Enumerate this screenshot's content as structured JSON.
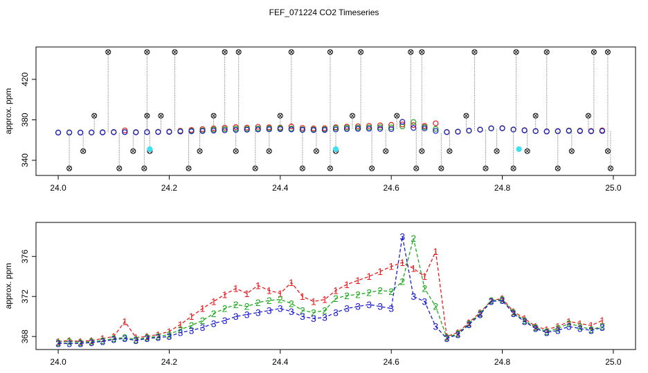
{
  "title": "FEF_071224  CO2 Timeseries",
  "chart_data": [
    {
      "type": "scatter",
      "ylabel": "approx. ppm",
      "xlim": [
        23.96,
        25.04
      ],
      "ylim": [
        325,
        452
      ],
      "xticks": [
        {
          "value": 24,
          "label": "24.0"
        },
        24.2,
        24.4,
        24.6,
        24.8,
        {
          "value": 25,
          "label": "25.0"
        }
      ],
      "yticks": [
        340,
        380,
        420
      ],
      "x": [
        24.0,
        24.02,
        24.04,
        24.06,
        24.08,
        24.1,
        24.12,
        24.14,
        24.16,
        24.18,
        24.2,
        24.22,
        24.24,
        24.26,
        24.28,
        24.3,
        24.32,
        24.34,
        24.36,
        24.38,
        24.4,
        24.42,
        24.44,
        24.46,
        24.48,
        24.5,
        24.52,
        24.54,
        24.56,
        24.58,
        24.6,
        24.62,
        24.64,
        24.66,
        24.68,
        24.7,
        24.72,
        24.74,
        24.76,
        24.78,
        24.8,
        24.82,
        24.84,
        24.86,
        24.88,
        24.9,
        24.92,
        24.94,
        24.96,
        24.98
      ],
      "series": [
        {
          "color": "#e41a1c",
          "values": [
            367.5,
            367.6,
            367.5,
            367.6,
            367.8,
            368.0,
            369.5,
            367.9,
            368.0,
            368.2,
            368.5,
            369.2,
            370.0,
            370.8,
            371.5,
            372.2,
            372.8,
            372.3,
            373.1,
            372.6,
            372.3,
            373.4,
            372.0,
            371.5,
            371.7,
            372.6,
            373.2,
            373.6,
            374.0,
            374.5,
            375.0,
            375.4,
            374.8,
            374.0,
            376.5,
            368.0,
            368.4,
            369.4,
            370.4,
            371.6,
            371.8,
            370.5,
            369.8,
            369.0,
            368.7,
            369.0,
            369.5,
            369.3,
            369.1,
            369.6
          ]
        },
        {
          "color": "#1ca81c",
          "values": [
            367.4,
            367.5,
            367.4,
            367.5,
            367.6,
            367.8,
            367.9,
            367.7,
            367.9,
            368.0,
            368.2,
            368.7,
            369.1,
            369.6,
            370.3,
            370.8,
            371.2,
            371.0,
            371.4,
            371.6,
            371.7,
            371.3,
            370.6,
            370.4,
            370.6,
            371.8,
            372.1,
            372.2,
            372.4,
            372.6,
            372.5,
            373.5,
            377.8,
            372.8,
            371.0,
            367.9,
            368.3,
            369.3,
            370.3,
            371.6,
            371.7,
            370.4,
            369.6,
            368.9,
            368.5,
            368.8,
            369.3,
            369.0,
            368.7,
            369.0
          ]
        },
        {
          "color": "#1a1acc",
          "values": [
            367.3,
            367.3,
            367.3,
            367.4,
            367.5,
            367.7,
            367.8,
            367.6,
            367.8,
            367.9,
            368.0,
            368.4,
            368.6,
            368.9,
            369.3,
            369.6,
            370.0,
            370.2,
            370.4,
            370.6,
            370.8,
            370.5,
            370.0,
            369.8,
            369.9,
            370.4,
            370.8,
            371.0,
            371.2,
            371.0,
            370.8,
            378.0,
            372.0,
            371.5,
            369.0,
            367.8,
            368.2,
            369.2,
            370.2,
            371.5,
            371.6,
            370.3,
            369.5,
            368.8,
            368.4,
            368.6,
            369.0,
            368.8,
            368.6,
            368.9
          ]
        },
        {
          "color": "#000000",
          "marker": "cross",
          "x": [
            24.09,
            24.16,
            24.21,
            24.3,
            24.325,
            24.42,
            24.49,
            24.545,
            24.635,
            24.655,
            24.75,
            24.825,
            24.88,
            24.965,
            24.99,
            24.02,
            24.11,
            24.155,
            24.235,
            24.355,
            24.44,
            24.49,
            24.565,
            24.645,
            24.69,
            24.77,
            24.82,
            24.9,
            24.995,
            24.045,
            24.135,
            24.165,
            24.255,
            24.32,
            24.38,
            24.465,
            24.5,
            24.59,
            24.655,
            24.705,
            24.79,
            24.845,
            24.925,
            24.99,
            24.065,
            24.16,
            24.185,
            24.28,
            24.4,
            24.53,
            24.61,
            24.735,
            24.86,
            24.955
          ],
          "values": [
            447,
            447,
            447,
            447,
            447,
            447,
            447,
            447,
            447,
            447,
            447,
            447,
            447,
            447,
            447,
            332,
            332,
            332,
            332,
            332,
            332,
            332,
            332,
            332,
            332,
            332,
            332,
            332,
            332,
            349,
            349,
            349,
            349,
            349,
            349,
            349,
            349,
            349,
            349,
            349,
            349,
            349,
            349,
            349,
            384,
            384,
            384,
            384,
            384,
            384,
            384,
            384,
            384,
            384
          ]
        },
        {
          "color": "#40e0f0",
          "marker": "filled",
          "x": [
            24.165,
            24.5,
            24.83
          ],
          "values": [
            351,
            351,
            351
          ]
        }
      ]
    },
    {
      "type": "line",
      "ylabel": "approx. ppm",
      "xlim": [
        23.96,
        25.04
      ],
      "ylim": [
        366.7,
        379.4
      ],
      "xticks": [
        {
          "value": 24,
          "label": "24.0"
        },
        24.2,
        24.4,
        24.6,
        24.8,
        {
          "value": 25,
          "label": "25.0"
        }
      ],
      "yticks": [
        368,
        372,
        376
      ],
      "x": [
        24.0,
        24.02,
        24.04,
        24.06,
        24.08,
        24.1,
        24.12,
        24.14,
        24.16,
        24.18,
        24.2,
        24.22,
        24.24,
        24.26,
        24.28,
        24.3,
        24.32,
        24.34,
        24.36,
        24.38,
        24.4,
        24.42,
        24.44,
        24.46,
        24.48,
        24.5,
        24.52,
        24.54,
        24.56,
        24.58,
        24.6,
        24.62,
        24.64,
        24.66,
        24.68,
        24.7,
        24.72,
        24.74,
        24.76,
        24.78,
        24.8,
        24.82,
        24.84,
        24.86,
        24.88,
        24.9,
        24.92,
        24.94,
        24.96,
        24.98
      ],
      "series": [
        {
          "name": "1",
          "color": "#e41a1c",
          "values": [
            367.5,
            367.6,
            367.5,
            367.6,
            367.8,
            368.0,
            369.5,
            367.9,
            368.0,
            368.2,
            368.5,
            369.2,
            370.0,
            370.8,
            371.5,
            372.2,
            372.8,
            372.3,
            373.1,
            372.6,
            372.3,
            373.4,
            372.0,
            371.5,
            371.7,
            372.6,
            373.2,
            373.6,
            374.0,
            374.5,
            375.0,
            375.4,
            374.8,
            374.0,
            376.5,
            368.0,
            368.4,
            369.4,
            370.4,
            371.6,
            371.8,
            370.5,
            369.8,
            369.0,
            368.7,
            369.0,
            369.5,
            369.3,
            369.1,
            369.6
          ]
        },
        {
          "name": "2",
          "color": "#1ca81c",
          "values": [
            367.4,
            367.5,
            367.4,
            367.5,
            367.6,
            367.8,
            367.9,
            367.7,
            367.9,
            368.0,
            368.2,
            368.7,
            369.1,
            369.6,
            370.3,
            370.8,
            371.2,
            371.0,
            371.4,
            371.6,
            371.7,
            371.3,
            370.6,
            370.4,
            370.6,
            371.8,
            372.1,
            372.2,
            372.4,
            372.6,
            372.5,
            373.5,
            377.8,
            372.8,
            371.0,
            367.9,
            368.3,
            369.3,
            370.3,
            371.6,
            371.7,
            370.4,
            369.6,
            368.9,
            368.5,
            368.8,
            369.3,
            369.0,
            368.7,
            369.0
          ]
        },
        {
          "name": "3",
          "color": "#1a1acc",
          "values": [
            367.3,
            367.3,
            367.3,
            367.4,
            367.5,
            367.7,
            367.8,
            367.6,
            367.8,
            367.9,
            368.0,
            368.4,
            368.6,
            368.9,
            369.3,
            369.6,
            370.0,
            370.2,
            370.4,
            370.6,
            370.8,
            370.5,
            370.0,
            369.8,
            369.9,
            370.4,
            370.8,
            371.0,
            371.2,
            371.0,
            370.8,
            378.0,
            372.0,
            371.5,
            369.0,
            367.8,
            368.2,
            369.2,
            370.2,
            371.5,
            371.6,
            370.3,
            369.5,
            368.8,
            368.4,
            368.6,
            369.0,
            368.8,
            368.6,
            368.9
          ]
        }
      ]
    }
  ]
}
